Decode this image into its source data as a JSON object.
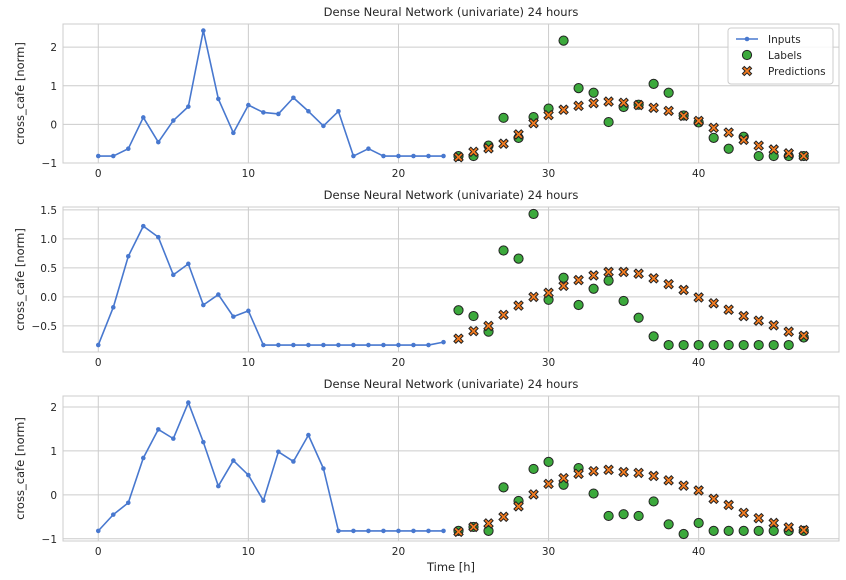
{
  "chart_data": [
    {
      "type": "line",
      "title": "Dense Neural Network (univariate) 24 hours",
      "xlabel": "",
      "ylabel": "cross_cafe [norm]",
      "xlim": [
        -2.35,
        49.35
      ],
      "ylim": [
        -1.0,
        2.6
      ],
      "xticks": [
        0,
        10,
        20,
        30,
        40
      ],
      "yticks": [
        -1,
        0,
        1,
        2
      ],
      "grid": true,
      "legend_position": "top-right",
      "legend": [
        "Inputs",
        "Labels",
        "Predictions"
      ],
      "inputs": {
        "x": [
          0,
          1,
          2,
          3,
          4,
          5,
          6,
          7,
          8,
          9,
          10,
          11,
          12,
          13,
          14,
          15,
          16,
          17,
          18,
          19,
          20,
          21,
          22,
          23
        ],
        "y": [
          -0.82,
          -0.82,
          -0.63,
          0.18,
          -0.46,
          0.1,
          0.46,
          2.43,
          0.66,
          -0.22,
          0.5,
          0.31,
          0.27,
          0.69,
          0.34,
          -0.04,
          0.34,
          -0.82,
          -0.63,
          -0.82,
          -0.82,
          -0.82,
          -0.82,
          -0.82
        ]
      },
      "labels": {
        "x": [
          24,
          25,
          26,
          27,
          28,
          29,
          30,
          31,
          32,
          33,
          34,
          35,
          36,
          37,
          38,
          39,
          40,
          41,
          42,
          43,
          44,
          45,
          46,
          47
        ],
        "y": [
          -0.82,
          -0.82,
          -0.55,
          0.17,
          -0.35,
          0.19,
          0.41,
          2.17,
          0.94,
          0.82,
          0.06,
          0.45,
          0.51,
          1.05,
          0.82,
          0.23,
          0.05,
          -0.35,
          -0.63,
          -0.32,
          -0.82,
          -0.82,
          -0.82,
          -0.82
        ]
      },
      "predictions": {
        "x": [
          24,
          25,
          26,
          27,
          28,
          29,
          30,
          31,
          32,
          33,
          34,
          35,
          36,
          37,
          38,
          39,
          40,
          41,
          42,
          43,
          44,
          45,
          46,
          47
        ],
        "y": [
          -0.85,
          -0.71,
          -0.62,
          -0.5,
          -0.26,
          0.03,
          0.24,
          0.38,
          0.48,
          0.55,
          0.59,
          0.56,
          0.5,
          0.43,
          0.35,
          0.22,
          0.09,
          -0.09,
          -0.21,
          -0.4,
          -0.55,
          -0.65,
          -0.75,
          -0.82
        ]
      }
    },
    {
      "type": "line",
      "title": "Dense Neural Network (univariate) 24 hours",
      "xlabel": "",
      "ylabel": "cross_cafe [norm]",
      "xlim": [
        -2.35,
        49.35
      ],
      "ylim": [
        -0.95,
        1.55
      ],
      "xticks": [
        0,
        10,
        20,
        30,
        40
      ],
      "yticks": [
        -0.5,
        0.0,
        0.5,
        1.0,
        1.5
      ],
      "ytick_labels": [
        "−0.5",
        "0.0",
        "0.5",
        "1.0",
        "1.5"
      ],
      "grid": true,
      "inputs": {
        "x": [
          0,
          1,
          2,
          3,
          4,
          5,
          6,
          7,
          8,
          9,
          10,
          11,
          12,
          13,
          14,
          15,
          16,
          17,
          18,
          19,
          20,
          21,
          22,
          23
        ],
        "y": [
          -0.83,
          -0.18,
          0.7,
          1.22,
          1.03,
          0.38,
          0.57,
          -0.14,
          0.04,
          -0.34,
          -0.24,
          -0.83,
          -0.83,
          -0.83,
          -0.83,
          -0.83,
          -0.83,
          -0.83,
          -0.83,
          -0.83,
          -0.83,
          -0.83,
          -0.83,
          -0.78
        ]
      },
      "labels": {
        "x": [
          24,
          25,
          26,
          27,
          28,
          29,
          30,
          31,
          32,
          33,
          34,
          35,
          36,
          37,
          38,
          39,
          40,
          41,
          42,
          43,
          44,
          45,
          46,
          47
        ],
        "y": [
          -0.23,
          -0.33,
          -0.6,
          0.8,
          0.66,
          1.43,
          -0.05,
          0.33,
          -0.14,
          0.14,
          0.28,
          -0.07,
          -0.36,
          -0.68,
          -0.83,
          -0.83,
          -0.83,
          -0.83,
          -0.83,
          -0.83,
          -0.83,
          -0.83,
          -0.83,
          -0.7
        ]
      },
      "predictions": {
        "x": [
          24,
          25,
          26,
          27,
          28,
          29,
          30,
          31,
          32,
          33,
          34,
          35,
          36,
          37,
          38,
          39,
          40,
          41,
          42,
          43,
          44,
          45,
          46,
          47
        ],
        "y": [
          -0.72,
          -0.59,
          -0.5,
          -0.31,
          -0.15,
          0.0,
          0.07,
          0.19,
          0.29,
          0.37,
          0.43,
          0.43,
          0.4,
          0.32,
          0.22,
          0.12,
          -0.01,
          -0.11,
          -0.22,
          -0.33,
          -0.41,
          -0.49,
          -0.6,
          -0.67
        ]
      }
    },
    {
      "type": "line",
      "title": "Dense Neural Network (univariate) 24 hours",
      "xlabel": "Time [h]",
      "ylabel": "cross_cafe [norm]",
      "xlim": [
        -2.35,
        49.35
      ],
      "ylim": [
        -1.05,
        2.25
      ],
      "xticks": [
        0,
        10,
        20,
        30,
        40
      ],
      "yticks": [
        -1,
        0,
        1,
        2
      ],
      "grid": true,
      "inputs": {
        "x": [
          0,
          1,
          2,
          3,
          4,
          5,
          6,
          7,
          8,
          9,
          10,
          11,
          12,
          13,
          14,
          15,
          16,
          17,
          18,
          19,
          20,
          21,
          22,
          23
        ],
        "y": [
          -0.82,
          -0.45,
          -0.18,
          0.84,
          1.49,
          1.28,
          2.1,
          1.2,
          0.2,
          0.78,
          0.45,
          -0.13,
          0.98,
          0.76,
          1.36,
          0.6,
          -0.82,
          -0.82,
          -0.82,
          -0.82,
          -0.82,
          -0.82,
          -0.82,
          -0.82
        ]
      },
      "labels": {
        "x": [
          24,
          25,
          26,
          27,
          28,
          29,
          30,
          31,
          32,
          33,
          34,
          35,
          36,
          37,
          38,
          39,
          40,
          41,
          42,
          43,
          44,
          45,
          46,
          47
        ],
        "y": [
          -0.82,
          -0.73,
          -0.82,
          0.17,
          -0.14,
          0.59,
          0.75,
          0.23,
          0.61,
          0.03,
          -0.48,
          -0.44,
          -0.48,
          -0.15,
          -0.67,
          -0.89,
          -0.64,
          -0.82,
          -0.82,
          -0.82,
          -0.82,
          -0.82,
          -0.82,
          -0.82
        ]
      },
      "predictions": {
        "x": [
          24,
          25,
          26,
          27,
          28,
          29,
          30,
          31,
          32,
          33,
          34,
          35,
          36,
          37,
          38,
          39,
          40,
          41,
          42,
          43,
          44,
          45,
          46,
          47
        ],
        "y": [
          -0.84,
          -0.73,
          -0.65,
          -0.5,
          -0.26,
          0.01,
          0.25,
          0.38,
          0.48,
          0.54,
          0.57,
          0.52,
          0.5,
          0.43,
          0.33,
          0.21,
          0.1,
          -0.09,
          -0.23,
          -0.41,
          -0.53,
          -0.64,
          -0.74,
          -0.8
        ]
      }
    }
  ],
  "colors": {
    "inputs": "#4878cf",
    "labels": "#3ca93c",
    "predictions": "#f47c20",
    "marker_edge": "#222222",
    "grid": "#cccccc"
  }
}
